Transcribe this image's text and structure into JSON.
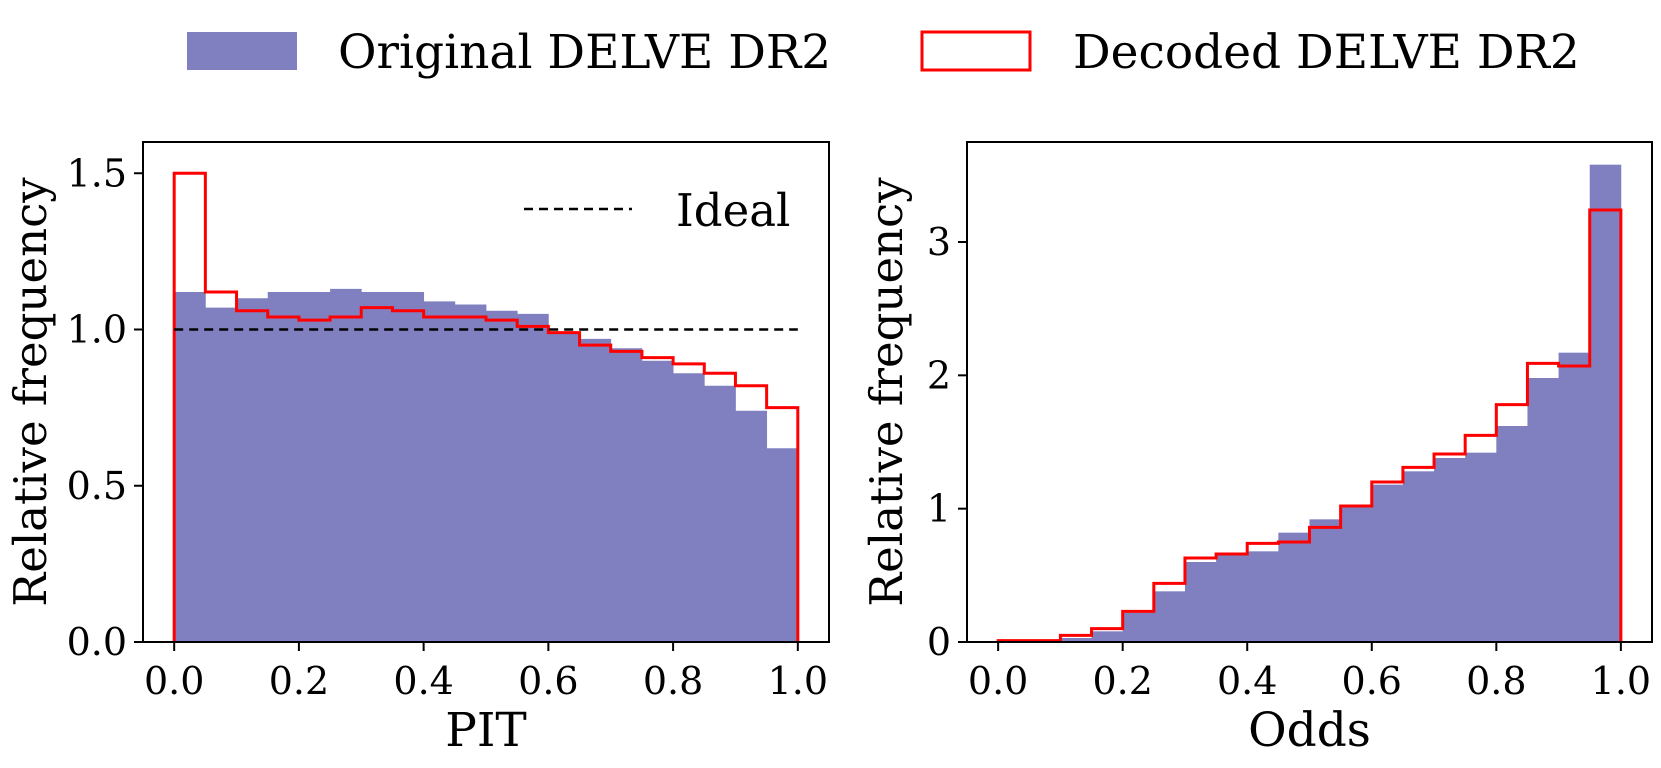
{
  "legend": {
    "original_label": "Original DELVE DR2",
    "decoded_label": "Decoded DELVE DR2",
    "original_color": "#8080c0",
    "decoded_color": "#ff0000",
    "position": "top-center"
  },
  "chart_data": [
    {
      "type": "histogram",
      "xlabel": "PIT",
      "ylabel": "Relative frequency",
      "xlim": [
        -0.05,
        1.05
      ],
      "ylim": [
        0,
        1.6
      ],
      "xticks": [
        0.0,
        0.2,
        0.4,
        0.6,
        0.8,
        1.0
      ],
      "xtick_labels": [
        "0.0",
        "0.2",
        "0.4",
        "0.6",
        "0.8",
        "1.0"
      ],
      "yticks": [
        0.0,
        0.5,
        1.0,
        1.5
      ],
      "ytick_labels": [
        "0.0",
        "0.5",
        "1.0",
        "1.5"
      ],
      "bin_edges": [
        0.0,
        0.05,
        0.1,
        0.15,
        0.2,
        0.25,
        0.3,
        0.35,
        0.4,
        0.45,
        0.5,
        0.55,
        0.6,
        0.65,
        0.7,
        0.75,
        0.8,
        0.85,
        0.9,
        0.95,
        1.0
      ],
      "series": [
        {
          "name": "Original DELVE DR2",
          "style": "filled",
          "values": [
            1.12,
            1.07,
            1.1,
            1.12,
            1.12,
            1.13,
            1.12,
            1.12,
            1.09,
            1.08,
            1.06,
            1.05,
            0.99,
            0.97,
            0.94,
            0.9,
            0.86,
            0.82,
            0.74,
            0.62
          ]
        },
        {
          "name": "Decoded DELVE DR2",
          "style": "step",
          "values": [
            1.5,
            1.12,
            1.06,
            1.04,
            1.03,
            1.04,
            1.07,
            1.06,
            1.04,
            1.04,
            1.03,
            1.01,
            0.99,
            0.95,
            0.93,
            0.91,
            0.89,
            0.86,
            0.82,
            0.75
          ]
        }
      ],
      "reference_line": {
        "label": "Ideal",
        "y": 1.0,
        "x_range": [
          0.0,
          1.0
        ],
        "style": "dashed"
      },
      "legend_position": "top-right"
    },
    {
      "type": "histogram",
      "xlabel": "Odds",
      "ylabel": "Relative frequency",
      "xlim": [
        -0.05,
        1.05
      ],
      "ylim": [
        0,
        3.75
      ],
      "xticks": [
        0.0,
        0.2,
        0.4,
        0.6,
        0.8,
        1.0
      ],
      "xtick_labels": [
        "0.0",
        "0.2",
        "0.4",
        "0.6",
        "0.8",
        "1.0"
      ],
      "yticks": [
        0,
        1,
        2,
        3
      ],
      "ytick_labels": [
        "0",
        "1",
        "2",
        "3"
      ],
      "bin_edges": [
        0.0,
        0.05,
        0.1,
        0.15,
        0.2,
        0.25,
        0.3,
        0.35,
        0.4,
        0.45,
        0.5,
        0.55,
        0.6,
        0.65,
        0.7,
        0.75,
        0.8,
        0.85,
        0.9,
        0.95,
        1.0
      ],
      "series": [
        {
          "name": "Original DELVE DR2",
          "style": "filled",
          "values": [
            0.0,
            0.0,
            0.03,
            0.08,
            0.22,
            0.38,
            0.6,
            0.65,
            0.68,
            0.82,
            0.92,
            1.02,
            1.18,
            1.28,
            1.38,
            1.42,
            1.62,
            1.98,
            2.17,
            3.58
          ]
        },
        {
          "name": "Decoded DELVE DR2",
          "style": "step",
          "values": [
            0.01,
            0.01,
            0.05,
            0.1,
            0.23,
            0.44,
            0.63,
            0.66,
            0.74,
            0.75,
            0.86,
            1.02,
            1.2,
            1.31,
            1.41,
            1.55,
            1.78,
            2.09,
            2.07,
            3.24
          ]
        }
      ]
    }
  ]
}
